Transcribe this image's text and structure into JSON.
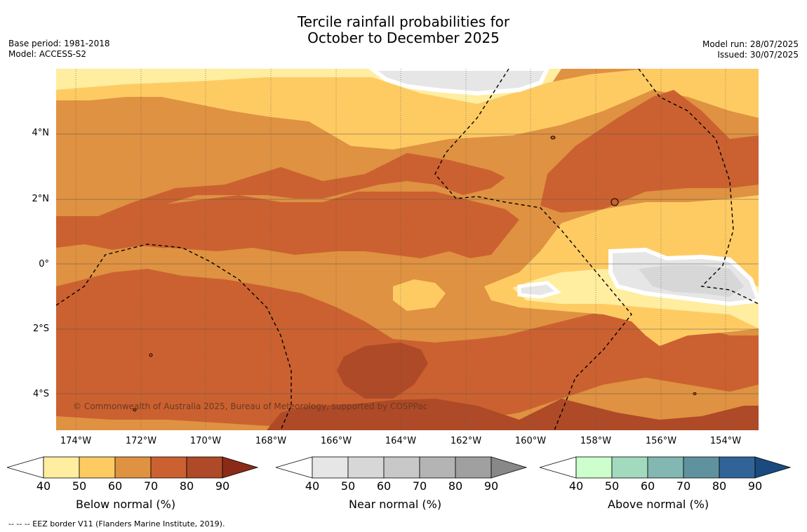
{
  "title_line1": "Tercile rainfall probabilities for",
  "title_line2": "October to December 2025",
  "meta_left": [
    "Base period: 1981-2018",
    "Model: ACCESS-S2"
  ],
  "meta_right": [
    "Model run: 28/07/2025",
    "Issued: 30/07/2025"
  ],
  "y_axis_labels": [
    "4°N",
    "2°N",
    "0°",
    "2°S",
    "4°S"
  ],
  "x_axis_labels": [
    "174°W",
    "172°W",
    "170°W",
    "168°W",
    "166°W",
    "164°W",
    "162°W",
    "160°W",
    "158°W",
    "156°W",
    "154°W"
  ],
  "copyright": "© Commonwealth of Australia 2025, Bureau of Meteorology, supported by COSPPac",
  "colorbars": [
    {
      "label": "Below normal (%)",
      "colors": [
        "#ffeda0",
        "#fecb63",
        "#df9241",
        "#cb6130",
        "#ae4a27",
        "#8b2b17"
      ],
      "ticks": [
        "40",
        "50",
        "60",
        "70",
        "80",
        "90"
      ]
    },
    {
      "label": "Near normal (%)",
      "colors": [
        "#e6e6e6",
        "#d7d7d7",
        "#c8c8c8",
        "#b4b4b4",
        "#a0a0a0",
        "#888888"
      ],
      "ticks": [
        "40",
        "50",
        "60",
        "70",
        "80",
        "90"
      ]
    },
    {
      "label": "Above normal (%)",
      "colors": [
        "#ccffcc",
        "#a2dabd",
        "#82b7b2",
        "#5f929e",
        "#326398",
        "#1a4b7f"
      ],
      "ticks": [
        "40",
        "50",
        "60",
        "70",
        "80",
        "90"
      ]
    }
  ],
  "footnote": "-- -- -- EEZ border V11 (Flanders Marine Institute, 2019).",
  "map_colors": {
    "bn40": "#ffeda0",
    "bn50": "#fecb63",
    "bn60": "#df9241",
    "bn70": "#cb6130",
    "bn80": "#ae4a27",
    "nn50": "#e6e6e6",
    "nn60": "#d7d7d7"
  }
}
